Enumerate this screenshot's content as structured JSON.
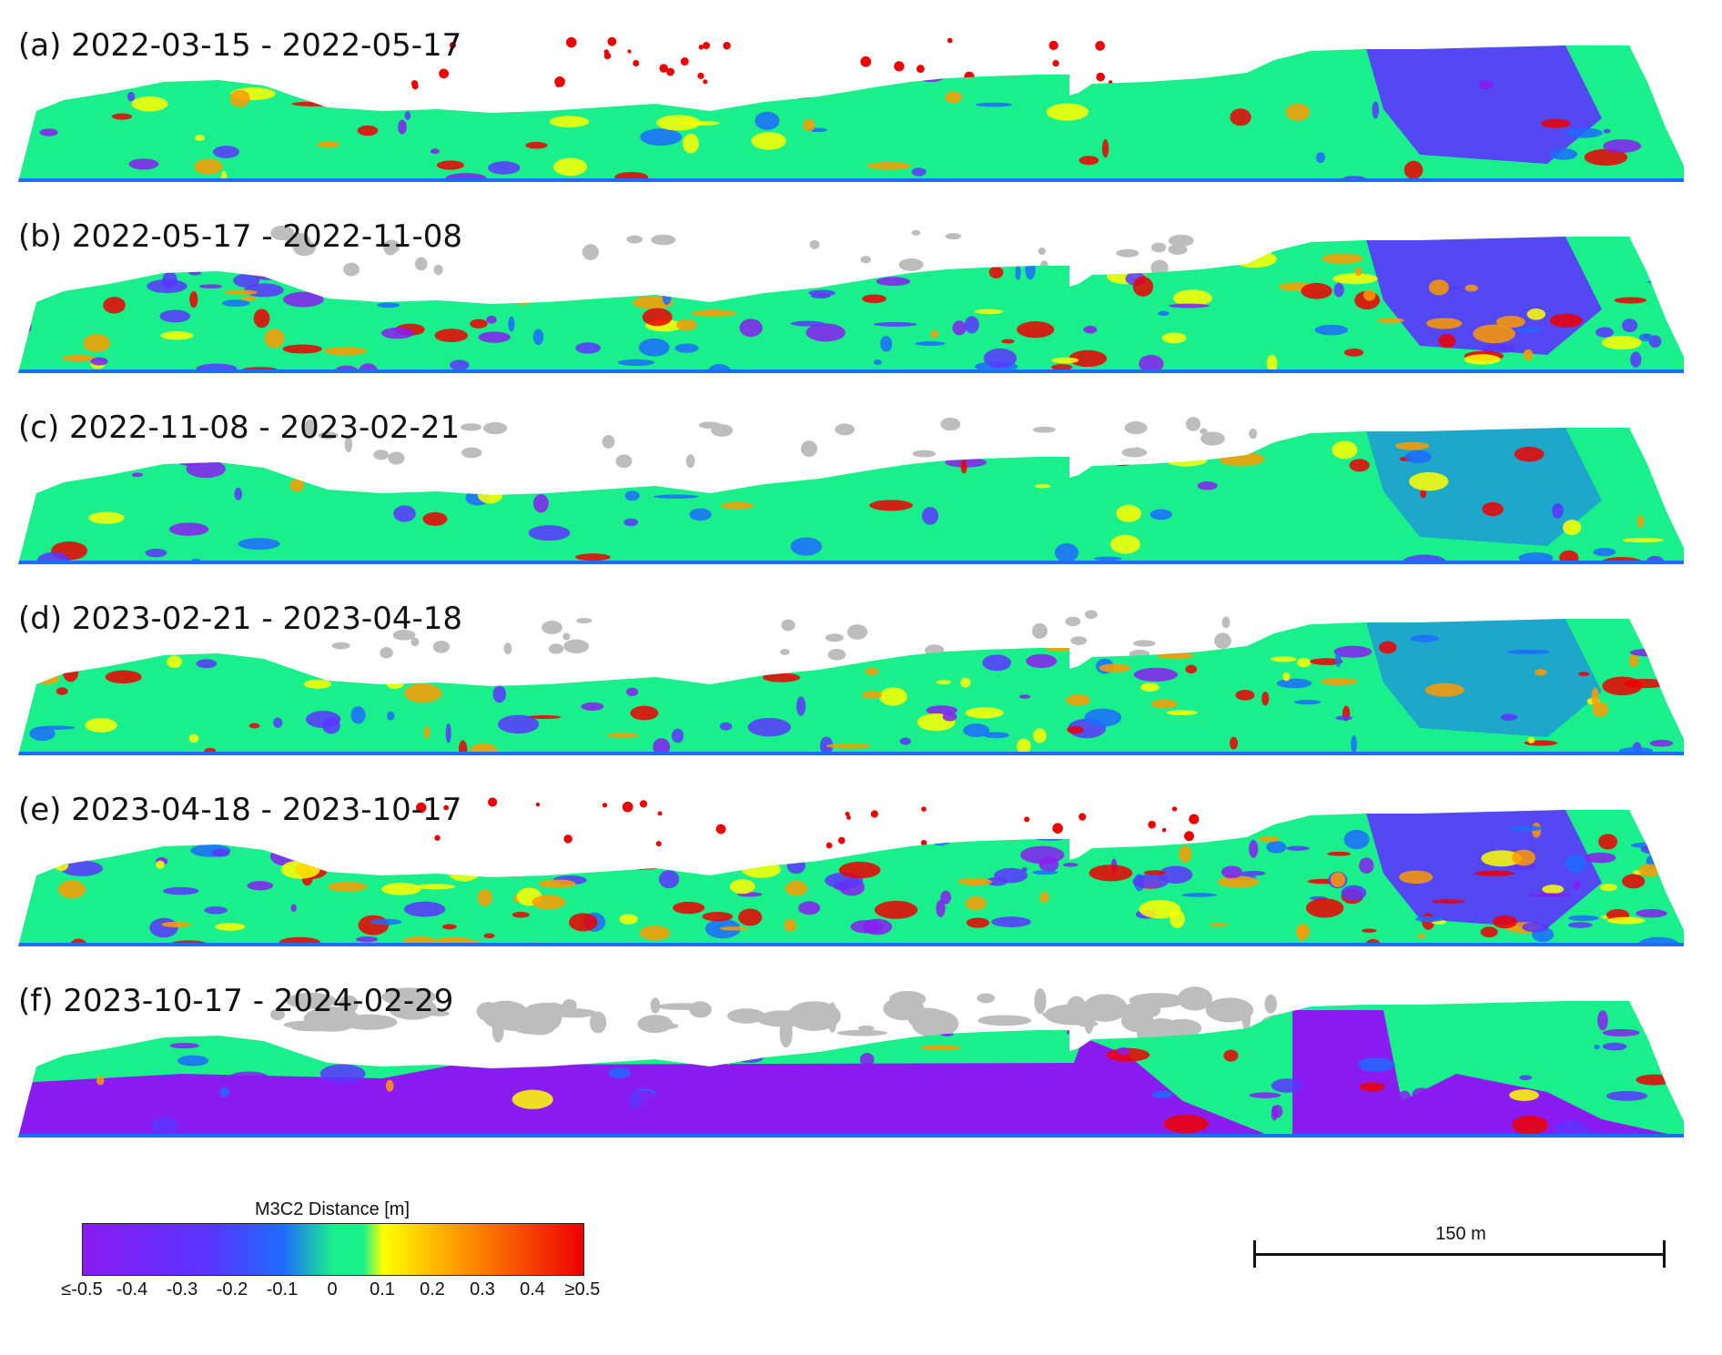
{
  "panels": [
    {
      "label": "(a) 2022-03-15 - 2022-05-17"
    },
    {
      "label": "(b) 2022-05-17 - 2022-11-08"
    },
    {
      "label": "(c) 2022-11-08 - 2023-02-21"
    },
    {
      "label": "(d) 2023-02-21 - 2023-04-18"
    },
    {
      "label": "(e) 2023-04-18 - 2023-10-17"
    },
    {
      "label": "(f) 2023-10-17 - 2024-02-29"
    }
  ],
  "legend": {
    "title": "M3C2 Distance [m]",
    "ticks": [
      "≤-0.5",
      "-0.4",
      "-0.3",
      "-0.2",
      "-0.1",
      "0",
      "0.1",
      "0.2",
      "0.3",
      "0.4",
      "≥0.5"
    ],
    "colors": {
      "neg_max": "#8a1cf2",
      "neg_mid": "#5a35ff",
      "neg_low": "#1f6bff",
      "zero": "#19f08c",
      "pos_low": "#ffff00",
      "pos_mid": "#ff9a00",
      "pos_max": "#ee0000"
    }
  },
  "scale": {
    "label": "150 m"
  },
  "no_data_color": "#bdbdbd"
}
